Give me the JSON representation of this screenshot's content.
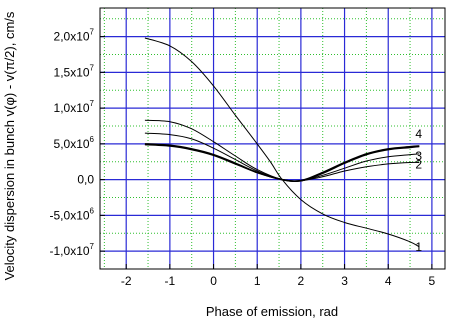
{
  "chart_data": {
    "type": "line",
    "xlabel": "Phase of emission, rad",
    "ylabel": "Velocity dispersion in bunch v(φ) - v(π/2), cm/s",
    "xlim": [
      -2.6,
      5.3
    ],
    "ylim": [
      -12500000.0,
      24000000.0
    ],
    "grid": true,
    "x_ticks": [
      -2,
      -1,
      0,
      1,
      2,
      3,
      4,
      5
    ],
    "x_tick_labels": [
      "-2",
      "-1",
      "0",
      "1",
      "2",
      "3",
      "4",
      "5"
    ],
    "y_ticks": [
      {
        "value": 20000000.0,
        "mantissa": "2,0x10",
        "exp": "7"
      },
      {
        "value": 15000000.0,
        "mantissa": "1,5x10",
        "exp": "7"
      },
      {
        "value": 10000000.0,
        "mantissa": "1,0x10",
        "exp": "7"
      },
      {
        "value": 5000000.0,
        "mantissa": "5,0x10",
        "exp": "6"
      },
      {
        "value": 0,
        "mantissa": "0,0",
        "exp": ""
      },
      {
        "value": -5000000.0,
        "mantissa": "-5,0x10",
        "exp": "6"
      },
      {
        "value": -10000000.0,
        "mantissa": "-1,0x10",
        "exp": "7"
      }
    ],
    "series": [
      {
        "name": "1",
        "x": [
          -1.571,
          -1,
          -0.5,
          0,
          0.5,
          1,
          1.3,
          1.571,
          2,
          2.5,
          3,
          3.5,
          4,
          4.5,
          4.712
        ],
        "y": [
          19800000,
          18700000,
          16500000,
          13100000,
          9000000,
          5000000,
          2500000,
          0,
          -2800000,
          -4800000,
          -6000000,
          -6800000,
          -7600000,
          -8700000,
          -9400000
        ]
      },
      {
        "name": "2",
        "x": [
          -1.571,
          -1,
          -0.5,
          0,
          0.5,
          1,
          1.571,
          2,
          2.5,
          3,
          3.5,
          4,
          4.5,
          4.712
        ],
        "y": [
          8300000,
          8100000,
          7100000,
          5300000,
          3300000,
          1400000,
          0,
          -150000,
          400000,
          1200000,
          1800000,
          2200000,
          2400000,
          2400000
        ]
      },
      {
        "name": "3",
        "x": [
          -1.571,
          -1,
          -0.5,
          0,
          0.5,
          1,
          1.571,
          2,
          2.5,
          3,
          3.5,
          4,
          4.5,
          4.712
        ],
        "y": [
          6500000,
          6300000,
          5700000,
          4400000,
          2800000,
          1200000,
          0,
          -150000,
          600000,
          1600000,
          2600000,
          3200000,
          3500000,
          3600000
        ]
      },
      {
        "name": "4",
        "x": [
          -1.571,
          -1,
          -0.5,
          0,
          0.5,
          1,
          1.571,
          2,
          2.5,
          3,
          3.5,
          4,
          4.5,
          4.712
        ],
        "y": [
          4900000,
          4700000,
          4200000,
          3400000,
          2200000,
          1000000,
          0,
          -150000,
          1000000,
          2400000,
          3600000,
          4300000,
          4600000,
          4700000
        ]
      },
      {
        "name": "",
        "x": [
          -1.571,
          -1,
          -0.5,
          0,
          0.5,
          1,
          1.571,
          2,
          2.5,
          3,
          3.5,
          4,
          4.5,
          4.712
        ],
        "y": [
          5000000,
          4800000,
          4300000,
          3500000,
          2300000,
          1000000,
          0,
          -150000,
          900000,
          2300000,
          3500000,
          4200000,
          4500000,
          4650000
        ]
      }
    ]
  }
}
